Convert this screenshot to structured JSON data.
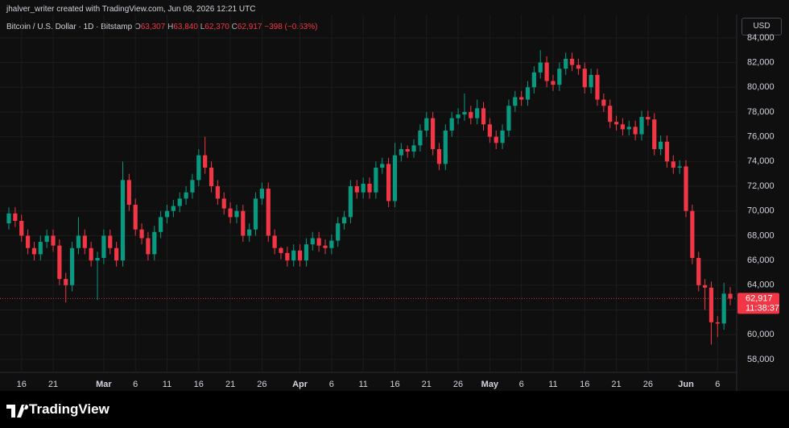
{
  "header": {
    "credit": "jhalver_writer created with TradingView.com, Jun 08, 2026 12:21 UTC",
    "symbol": "Bitcoin / U.S. Dollar · 1D · Bitstamp",
    "ohlc": [
      {
        "key": "O",
        "value": "63,307"
      },
      {
        "key": "H",
        "value": "63,840"
      },
      {
        "key": "L",
        "value": "62,370"
      },
      {
        "key": "C",
        "value": "62,917"
      }
    ],
    "change": "−398 (−0.63%)",
    "currency": "USD"
  },
  "footer": {
    "brand": "TradingView"
  },
  "chart_data": {
    "type": "candlestick",
    "up_color": "#089981",
    "down_color": "#f23645",
    "grid": true,
    "categories": [
      "Feb 14",
      "Feb 15",
      "Feb 16",
      "Feb 17",
      "Feb 18",
      "Feb 19",
      "Feb 20",
      "Feb 21",
      "Feb 22",
      "Feb 23",
      "Feb 24",
      "Feb 25",
      "Feb 26",
      "Feb 27",
      "Feb 28",
      "Mar 1",
      "Mar 2",
      "Mar 3",
      "Mar 4",
      "Mar 5",
      "Mar 6",
      "Mar 7",
      "Mar 8",
      "Mar 9",
      "Mar 10",
      "Mar 11",
      "Mar 12",
      "Mar 13",
      "Mar 14",
      "Mar 15",
      "Mar 16",
      "Mar 17",
      "Mar 18",
      "Mar 19",
      "Mar 20",
      "Mar 21",
      "Mar 22",
      "Mar 23",
      "Mar 24",
      "Mar 25",
      "Mar 26",
      "Mar 27",
      "Mar 28",
      "Mar 29",
      "Mar 30",
      "Mar 31",
      "Apr 1",
      "Apr 2",
      "Apr 3",
      "Apr 4",
      "Apr 5",
      "Apr 6",
      "Apr 7",
      "Apr 8",
      "Apr 9",
      "Apr 10",
      "Apr 11",
      "Apr 12",
      "Apr 13",
      "Apr 14",
      "Apr 15",
      "Apr 16",
      "Apr 17",
      "Apr 18",
      "Apr 19",
      "Apr 20",
      "Apr 21",
      "Apr 22",
      "Apr 23",
      "Apr 24",
      "Apr 25",
      "Apr 26",
      "Apr 27",
      "Apr 28",
      "Apr 29",
      "Apr 30",
      "May 1",
      "May 2",
      "May 3",
      "May 4",
      "May 5",
      "May 6",
      "May 7",
      "May 8",
      "May 9",
      "May 10",
      "May 11",
      "May 12",
      "May 13",
      "May 14",
      "May 15",
      "May 16",
      "May 17",
      "May 18",
      "May 19",
      "May 20",
      "May 21",
      "May 22",
      "May 23",
      "May 24",
      "May 25",
      "May 26",
      "May 27",
      "May 28",
      "May 29",
      "May 30",
      "May 31",
      "Jun 1",
      "Jun 2",
      "Jun 3",
      "Jun 4",
      "Jun 5",
      "Jun 6",
      "Jun 7",
      "Jun 8"
    ],
    "open": [
      69000,
      69800,
      69200,
      68000,
      67000,
      66500,
      67500,
      68000,
      67200,
      64500,
      64000,
      67000,
      68000,
      67000,
      66000,
      66200,
      68000,
      67000,
      66000,
      72500,
      70500,
      68500,
      67800,
      66500,
      68300,
      69500,
      70000,
      70400,
      71000,
      71500,
      72500,
      74500,
      73500,
      72000,
      71000,
      70200,
      69500,
      70000,
      68000,
      68500,
      71000,
      71800,
      68000,
      67000,
      66600,
      66000,
      66800,
      66000,
      67300,
      67800,
      67200,
      67000,
      67600,
      69000,
      69500,
      72000,
      71500,
      72200,
      71500,
      73500,
      73800,
      70800,
      74500,
      75000,
      74800,
      75300,
      76500,
      77500,
      75000,
      73800,
      76500,
      77500,
      77800,
      78000,
      77500,
      78300,
      77000,
      76000,
      75500,
      76500,
      78500,
      79200,
      79000,
      80000,
      81200,
      82000,
      80500,
      80200,
      81500,
      82300,
      81800,
      81500,
      80000,
      81000,
      79000,
      78500,
      77200,
      77000,
      76600,
      76800,
      76200,
      77600,
      77400,
      75000,
      75600,
      74000,
      73500,
      73600,
      70000,
      66200,
      64000,
      63800,
      61000,
      60900,
      63307
    ],
    "high": [
      70300,
      70300,
      69700,
      68500,
      67500,
      68000,
      68500,
      68500,
      67700,
      65000,
      67500,
      69500,
      68500,
      67500,
      66700,
      68500,
      68500,
      67500,
      74000,
      73000,
      71000,
      69000,
      68300,
      68800,
      70000,
      70500,
      70900,
      71500,
      72000,
      73000,
      75000,
      76000,
      74000,
      72500,
      71500,
      70700,
      70500,
      70500,
      69000,
      71500,
      72300,
      72300,
      68500,
      67100,
      67100,
      67300,
      67300,
      67800,
      68300,
      68300,
      67700,
      68100,
      69500,
      70000,
      72500,
      72500,
      72700,
      72700,
      74000,
      74300,
      74300,
      75500,
      75500,
      75300,
      75800,
      77000,
      78000,
      78000,
      75500,
      77000,
      78000,
      78300,
      79500,
      78500,
      79000,
      78800,
      77500,
      76500,
      77000,
      79000,
      79700,
      79700,
      80500,
      81700,
      83000,
      82500,
      81000,
      82000,
      82800,
      82800,
      82300,
      82000,
      81500,
      81500,
      79500,
      79000,
      77700,
      77500,
      77300,
      77300,
      78100,
      78100,
      77900,
      76100,
      76100,
      74500,
      74100,
      74100,
      70500,
      66700,
      64500,
      64300,
      61500,
      64200,
      63840
    ],
    "low": [
      68500,
      68700,
      67500,
      66500,
      66000,
      66000,
      67000,
      66700,
      64000,
      62600,
      63500,
      66500,
      66500,
      65500,
      62800,
      65700,
      66500,
      65500,
      65500,
      70000,
      68000,
      67300,
      66000,
      66000,
      67800,
      69000,
      69500,
      69900,
      70500,
      71000,
      72000,
      73000,
      71500,
      70500,
      69700,
      69000,
      69000,
      67500,
      67500,
      68000,
      70500,
      67500,
      66500,
      66100,
      65500,
      65500,
      65500,
      65500,
      66800,
      66700,
      66500,
      66500,
      67100,
      68500,
      69000,
      71000,
      71000,
      71000,
      71000,
      73000,
      70300,
      70300,
      74000,
      74300,
      74300,
      74800,
      76000,
      74500,
      73300,
      73300,
      76000,
      77000,
      77300,
      77000,
      77000,
      76500,
      75500,
      75000,
      75000,
      76000,
      78000,
      78500,
      78500,
      79500,
      80700,
      80000,
      79700,
      79700,
      81000,
      81300,
      81000,
      79500,
      79500,
      78500,
      78000,
      76700,
      76500,
      76100,
      76100,
      75700,
      75700,
      76900,
      74500,
      74500,
      73500,
      73000,
      73000,
      69500,
      65700,
      63500,
      62000,
      59200,
      59800,
      60400,
      62370
    ],
    "close": [
      69800,
      69200,
      68000,
      67000,
      66500,
      67500,
      68000,
      67200,
      64500,
      64000,
      67000,
      68000,
      67000,
      66000,
      66200,
      68000,
      67000,
      66000,
      72500,
      70500,
      68500,
      67800,
      66500,
      68300,
      69500,
      70000,
      70400,
      71000,
      71500,
      72500,
      74500,
      73500,
      72000,
      71000,
      70200,
      69500,
      70000,
      68000,
      68500,
      71000,
      71800,
      68000,
      67000,
      66600,
      66000,
      66800,
      66000,
      67300,
      67800,
      67200,
      67000,
      67600,
      69000,
      69500,
      72000,
      71500,
      72200,
      71500,
      73500,
      73800,
      70800,
      74500,
      75000,
      74800,
      75300,
      76500,
      77500,
      75000,
      73800,
      76500,
      77500,
      77800,
      78000,
      77500,
      78300,
      77000,
      76000,
      75500,
      76500,
      78500,
      79200,
      79000,
      80000,
      81200,
      82000,
      80500,
      80200,
      81500,
      82300,
      81800,
      81500,
      80000,
      81000,
      79000,
      78500,
      77200,
      77000,
      76600,
      76800,
      76200,
      77600,
      77400,
      75000,
      75600,
      74000,
      73500,
      73600,
      70000,
      66200,
      64000,
      63800,
      61000,
      60900,
      63315,
      62917
    ],
    "last_price_label": "62,917",
    "countdown": "11:38:37",
    "ylim": [
      56950,
      85880
    ],
    "yticks": [
      {
        "value": 58000,
        "label": "58,000"
      },
      {
        "value": 60000,
        "label": "60,000"
      },
      {
        "value": 62000,
        "label": "62,000"
      },
      {
        "value": 64000,
        "label": "64,000"
      },
      {
        "value": 66000,
        "label": "66,000"
      },
      {
        "value": 68000,
        "label": "68,000"
      },
      {
        "value": 70000,
        "label": "70,000"
      },
      {
        "value": 72000,
        "label": "72,000"
      },
      {
        "value": 74000,
        "label": "74,000"
      },
      {
        "value": 76000,
        "label": "76,000"
      },
      {
        "value": 78000,
        "label": "78,000"
      },
      {
        "value": 80000,
        "label": "80,000"
      },
      {
        "value": 82000,
        "label": "82,000"
      },
      {
        "value": 84000,
        "label": "84,000"
      }
    ],
    "xticks": [
      {
        "value": "Feb 16",
        "label": "16"
      },
      {
        "value": "Feb 21",
        "label": "21"
      },
      {
        "value": "Mar 1",
        "label": "Mar"
      },
      {
        "value": "Mar 6",
        "label": "6"
      },
      {
        "value": "Mar 11",
        "label": "11"
      },
      {
        "value": "Mar 16",
        "label": "16"
      },
      {
        "value": "Mar 21",
        "label": "21"
      },
      {
        "value": "Mar 26",
        "label": "26"
      },
      {
        "value": "Apr 1",
        "label": "Apr"
      },
      {
        "value": "Apr 6",
        "label": "6"
      },
      {
        "value": "Apr 11",
        "label": "11"
      },
      {
        "value": "Apr 16",
        "label": "16"
      },
      {
        "value": "Apr 21",
        "label": "21"
      },
      {
        "value": "Apr 26",
        "label": "26"
      },
      {
        "value": "May 1",
        "label": "May"
      },
      {
        "value": "May 6",
        "label": "6"
      },
      {
        "value": "May 11",
        "label": "11"
      },
      {
        "value": "May 16",
        "label": "16"
      },
      {
        "value": "May 21",
        "label": "21"
      },
      {
        "value": "May 26",
        "label": "26"
      },
      {
        "value": "Jun 1",
        "label": "Jun"
      },
      {
        "value": "Jun 6",
        "label": "6"
      }
    ]
  }
}
